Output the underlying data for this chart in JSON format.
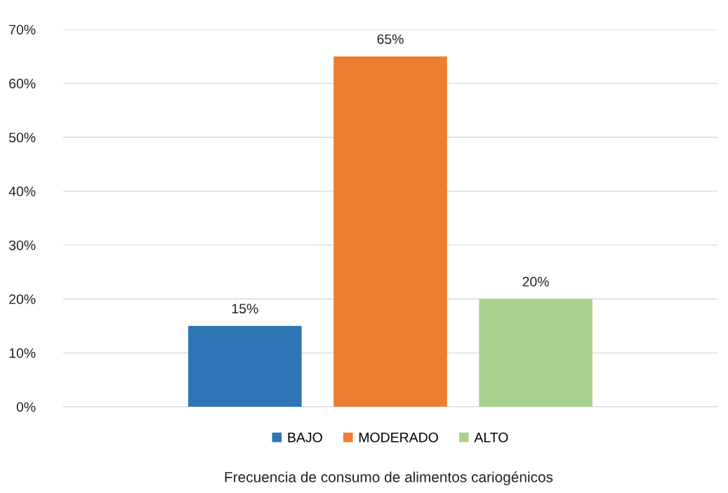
{
  "chart_data": {
    "type": "bar",
    "xlabel": "Frecuencia de consumo de alimentos cariogénicos",
    "categories": [
      null
    ],
    "series": [
      {
        "name": "BAJO",
        "color": "#2e75b6",
        "values": [
          15
        ],
        "value_labels": [
          "15%"
        ]
      },
      {
        "name": "MODERADO",
        "color": "#ed7d31",
        "values": [
          65
        ],
        "value_labels": [
          "65%"
        ]
      },
      {
        "name": "ALTO",
        "color": "#a9d18e",
        "values": [
          20
        ],
        "value_labels": [
          "20%"
        ]
      }
    ],
    "ylim": [
      0,
      70
    ],
    "yticks": [
      {
        "value": 0,
        "label": "0%"
      },
      {
        "value": 10,
        "label": "10%"
      },
      {
        "value": 20,
        "label": "20%"
      },
      {
        "value": 30,
        "label": "30%"
      },
      {
        "value": 40,
        "label": "40%"
      },
      {
        "value": 50,
        "label": "50%"
      },
      {
        "value": 60,
        "label": "60%"
      },
      {
        "value": 70,
        "label": "70%"
      }
    ],
    "grid": "y",
    "legend": "bottom",
    "tick_labels": "y"
  }
}
